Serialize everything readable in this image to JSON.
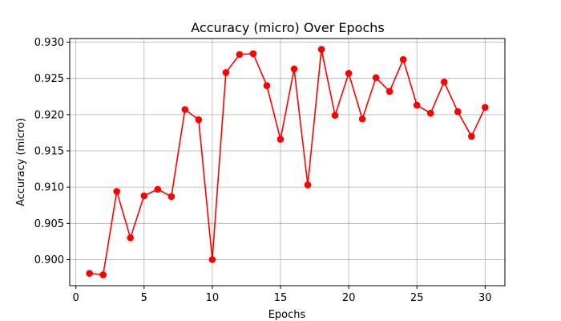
{
  "chart_data": {
    "type": "line",
    "title": "Accuracy (micro) Over Epochs",
    "xlabel": "Epochs",
    "ylabel": "Accuracy (micro)",
    "xlim": [
      -0.45,
      31.45
    ],
    "ylim": [
      0.8964,
      0.9305
    ],
    "x_ticks": [
      0,
      5,
      10,
      15,
      20,
      25,
      30
    ],
    "y_ticks": [
      0.9,
      0.905,
      0.91,
      0.915,
      0.92,
      0.925,
      0.93
    ],
    "y_tick_labels": [
      "0.900",
      "0.905",
      "0.910",
      "0.915",
      "0.920",
      "0.925",
      "0.930"
    ],
    "grid": true,
    "line_color": "#ff0000",
    "marker": "circle",
    "series": [
      {
        "x": [
          1,
          2,
          3,
          4,
          5,
          6,
          7,
          8,
          9,
          10,
          11,
          12,
          13,
          14,
          15,
          16,
          17,
          18,
          19,
          20,
          21,
          22,
          23,
          24,
          25,
          26,
          27,
          28,
          29,
          30
        ],
        "values": [
          0.8981,
          0.8979,
          0.9094,
          0.903,
          0.9088,
          0.9097,
          0.9087,
          0.9207,
          0.9193,
          0.9,
          0.9258,
          0.9283,
          0.9284,
          0.924,
          0.9166,
          0.9263,
          0.9103,
          0.929,
          0.9199,
          0.9257,
          0.9194,
          0.9251,
          0.9232,
          0.9276,
          0.9213,
          0.9202,
          0.9245,
          0.9204,
          0.917,
          0.921
        ]
      }
    ]
  }
}
